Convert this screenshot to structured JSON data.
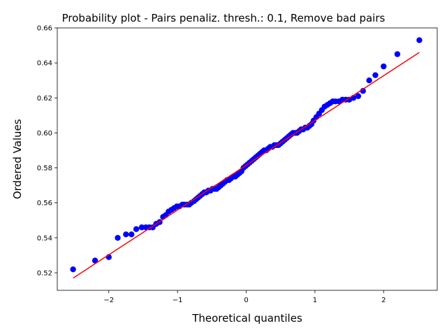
{
  "chart_data": {
    "type": "scatter",
    "title": "Probability plot - Pairs penaliz. thresh.: 0.1, Remove bad pairs",
    "xlabel": "Theoretical quantiles",
    "ylabel": "Ordered Values",
    "xlim": [
      -2.75,
      2.78
    ],
    "ylim": [
      0.51,
      0.66
    ],
    "xticks": [
      -2,
      -1,
      0,
      1,
      2
    ],
    "xtick_labels": [
      "−2",
      "−1",
      "0",
      "1",
      "2"
    ],
    "yticks": [
      0.52,
      0.54,
      0.56,
      0.58,
      0.6,
      0.62,
      0.64,
      0.66
    ],
    "ytick_labels": [
      "0.52",
      "0.54",
      "0.56",
      "0.58",
      "0.60",
      "0.62",
      "0.64",
      "0.66"
    ],
    "grid": false,
    "colors": {
      "points": "#0000ff",
      "fit_line": "#ff0000"
    },
    "fit_line": {
      "x": [
        -2.52,
        2.52
      ],
      "y": [
        0.517,
        0.646
      ]
    },
    "points": {
      "x": [
        -2.52,
        -2.2,
        -2.0,
        -1.87,
        -1.75,
        -1.67,
        -1.6,
        -1.52,
        -1.46,
        -1.41,
        -1.36,
        -1.31,
        -1.26,
        -1.21,
        -1.17,
        -1.13,
        -1.09,
        -1.05,
        -1.01,
        -0.97,
        -0.93,
        -0.9,
        -0.86,
        -0.83,
        -0.8,
        -0.76,
        -0.73,
        -0.7,
        -0.67,
        -0.64,
        -0.61,
        -0.58,
        -0.55,
        -0.52,
        -0.49,
        -0.46,
        -0.43,
        -0.4,
        -0.37,
        -0.34,
        -0.31,
        -0.28,
        -0.25,
        -0.22,
        -0.19,
        -0.16,
        -0.13,
        -0.1,
        -0.07,
        -0.04,
        -0.01,
        0.02,
        0.05,
        0.08,
        0.11,
        0.14,
        0.17,
        0.2,
        0.23,
        0.26,
        0.29,
        0.32,
        0.35,
        0.38,
        0.41,
        0.44,
        0.47,
        0.5,
        0.53,
        0.56,
        0.59,
        0.62,
        0.65,
        0.68,
        0.71,
        0.74,
        0.77,
        0.8,
        0.83,
        0.86,
        0.89,
        0.92,
        0.95,
        0.98,
        1.02,
        1.06,
        1.1,
        1.14,
        1.18,
        1.22,
        1.26,
        1.3,
        1.35,
        1.4,
        1.45,
        1.5,
        1.56,
        1.63,
        1.7,
        1.79,
        1.88,
        2.0,
        2.2,
        2.52
      ],
      "y": [
        0.522,
        0.527,
        0.529,
        0.54,
        0.542,
        0.542,
        0.545,
        0.546,
        0.546,
        0.546,
        0.546,
        0.548,
        0.549,
        0.552,
        0.553,
        0.555,
        0.556,
        0.557,
        0.558,
        0.558,
        0.559,
        0.559,
        0.559,
        0.559,
        0.56,
        0.561,
        0.562,
        0.563,
        0.564,
        0.565,
        0.566,
        0.566,
        0.567,
        0.567,
        0.568,
        0.568,
        0.568,
        0.569,
        0.57,
        0.571,
        0.572,
        0.573,
        0.573,
        0.574,
        0.575,
        0.575,
        0.576,
        0.577,
        0.578,
        0.58,
        0.581,
        0.582,
        0.583,
        0.584,
        0.585,
        0.586,
        0.587,
        0.588,
        0.589,
        0.59,
        0.59,
        0.591,
        0.592,
        0.592,
        0.593,
        0.593,
        0.593,
        0.594,
        0.595,
        0.596,
        0.597,
        0.598,
        0.599,
        0.6,
        0.6,
        0.6,
        0.601,
        0.602,
        0.602,
        0.603,
        0.603,
        0.604,
        0.605,
        0.607,
        0.609,
        0.611,
        0.613,
        0.615,
        0.616,
        0.617,
        0.618,
        0.618,
        0.618,
        0.619,
        0.619,
        0.619,
        0.62,
        0.621,
        0.624,
        0.63,
        0.633,
        0.638,
        0.645,
        0.653
      ]
    }
  }
}
